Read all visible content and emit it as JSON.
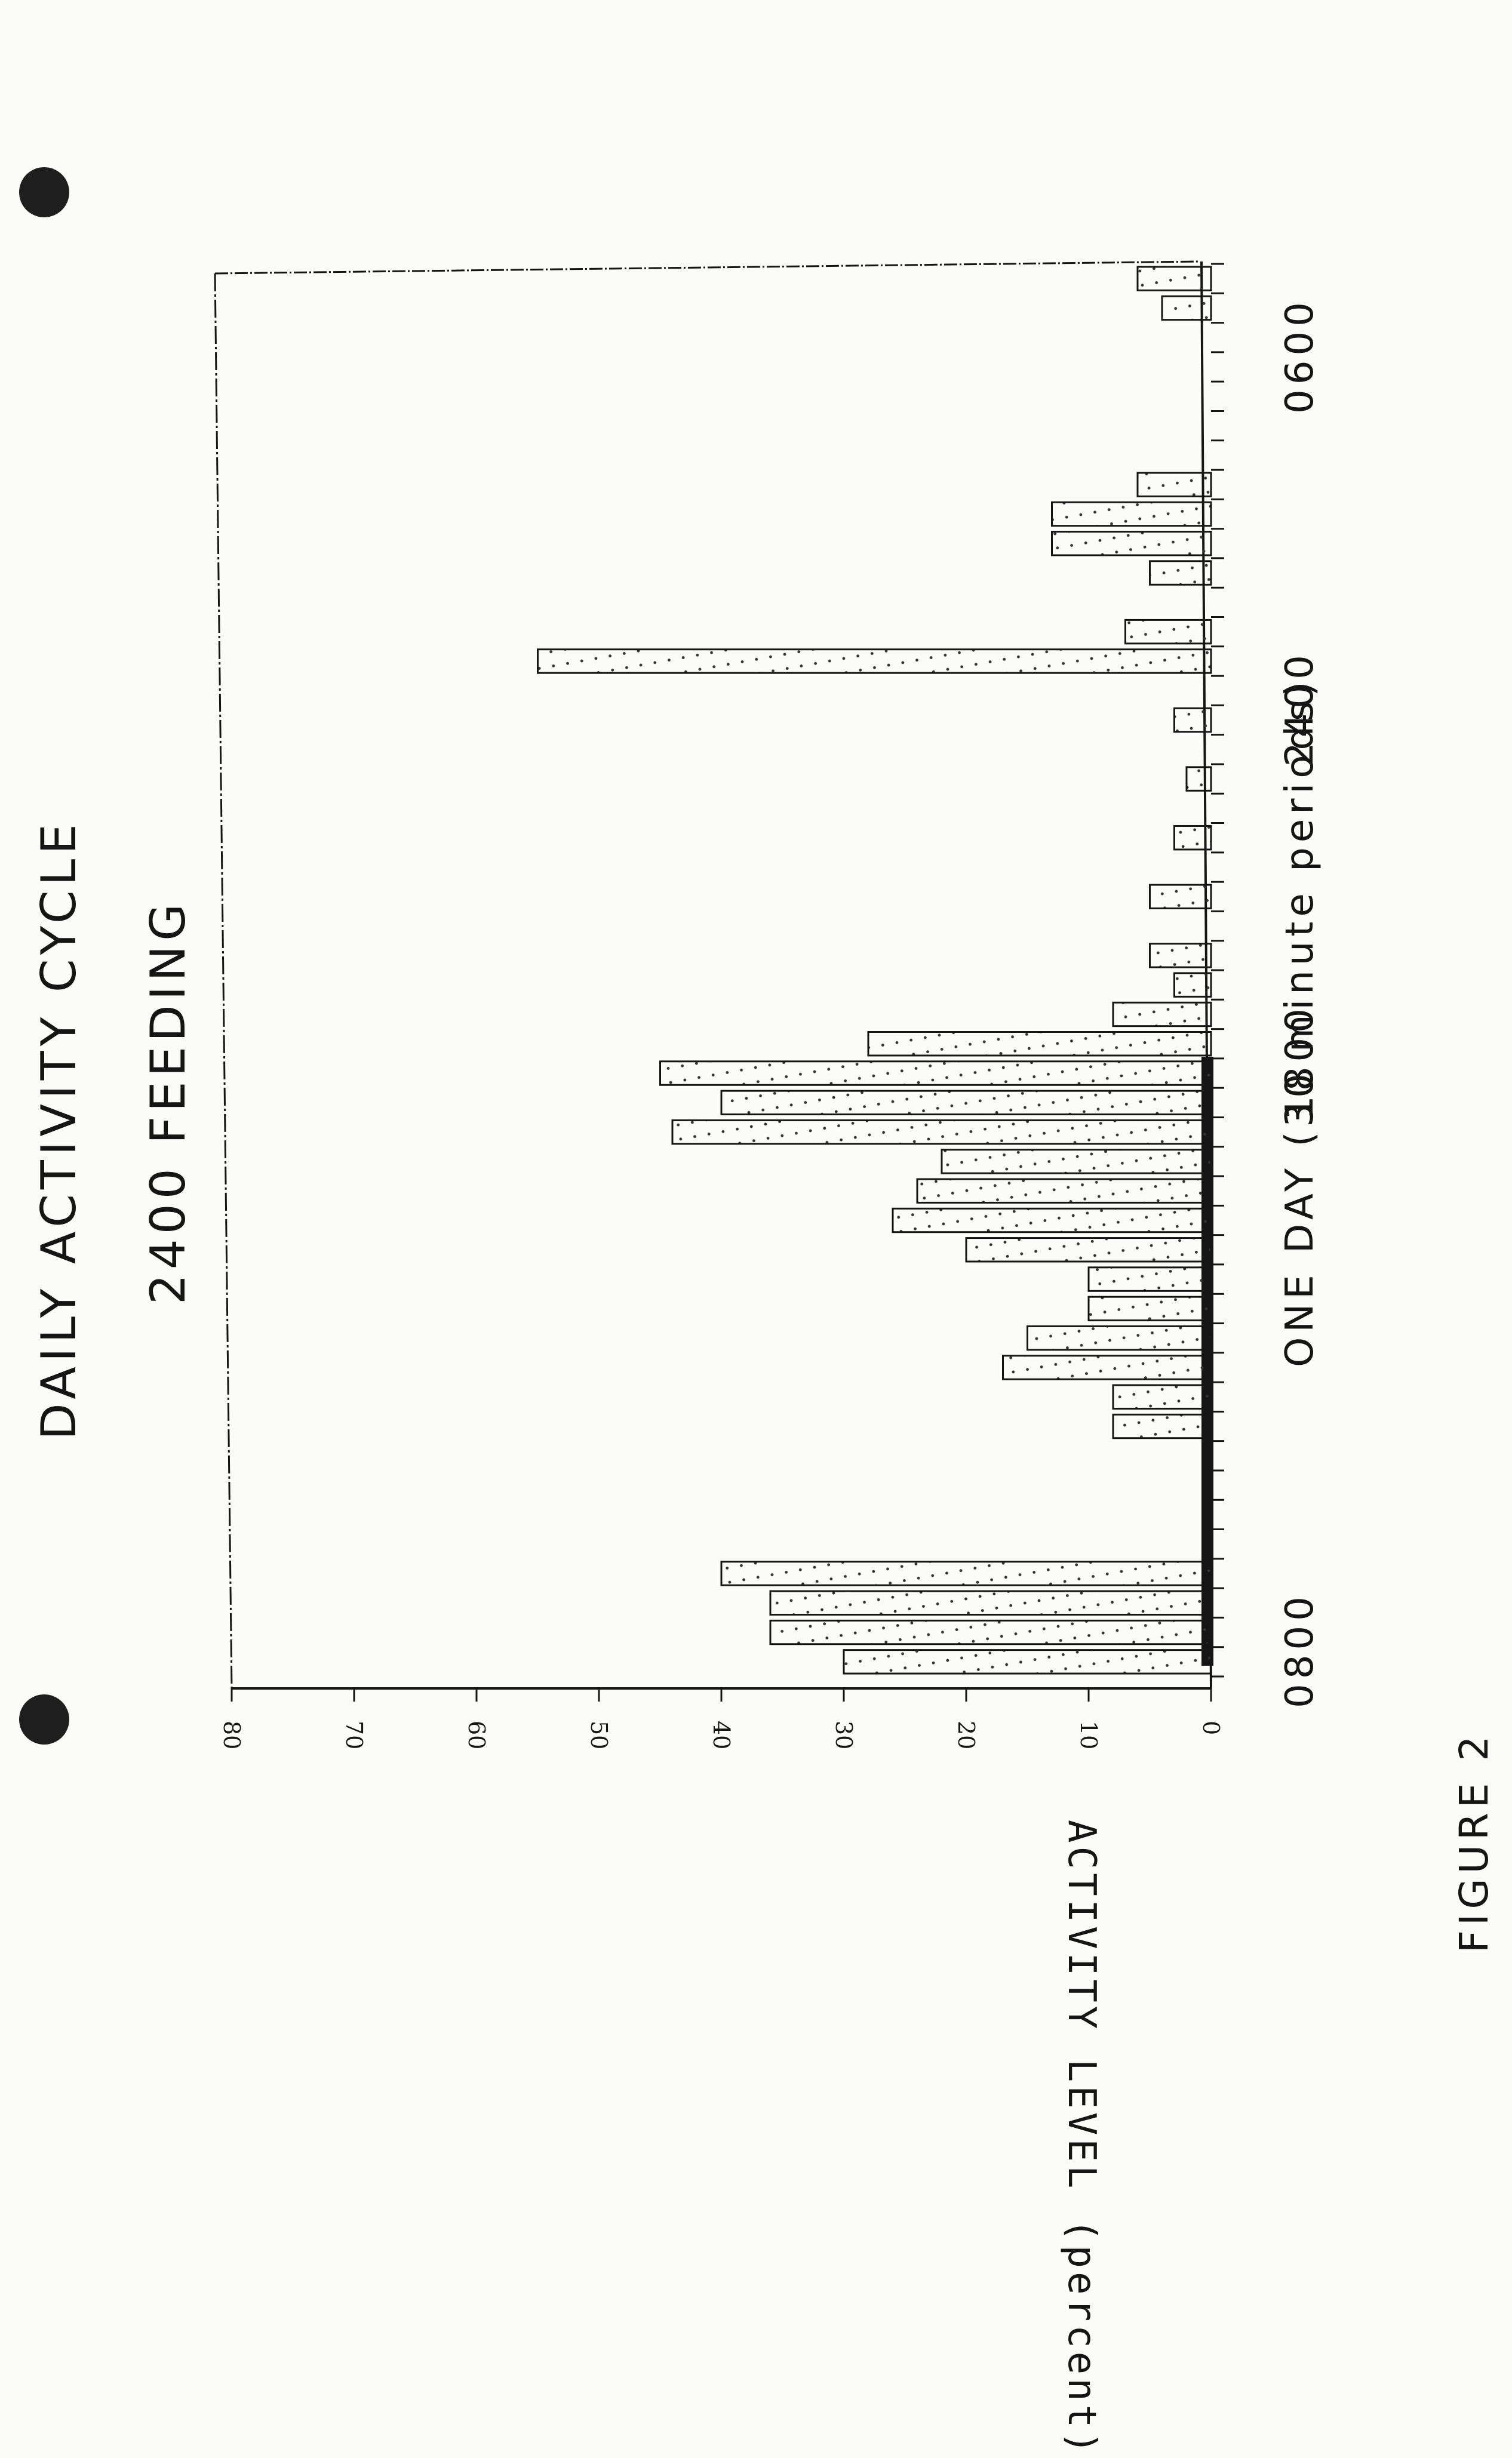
{
  "title": "DAILY ACTIVITY  CYCLE",
  "subtitle": "2400  FEEDING",
  "figure_label": "FIGURE 2",
  "colors": {
    "ink": "#151515",
    "paper": "#fbfbfa",
    "hole": "#1e1e1e"
  },
  "chart_data": {
    "type": "bar",
    "title": "DAILY ACTIVITY  CYCLE",
    "subtitle": "2400  FEEDING",
    "orientation": "rotated-90",
    "xlabel": "ONE DAY  (30 minute periods)",
    "ylabel": "ACTIVITY LEVEL  (percent)",
    "ylim": [
      0,
      80
    ],
    "yticks": [
      "0",
      "10",
      "20",
      "30",
      "40",
      "50",
      "60",
      "70",
      "80"
    ],
    "xtick_labels": [
      "0800",
      "1800",
      "2400",
      "0600"
    ],
    "periods_per_day": 48,
    "values": [
      30,
      36,
      36,
      40,
      0,
      0,
      0,
      0,
      8,
      8,
      17,
      15,
      10,
      10,
      20,
      26,
      24,
      22,
      44,
      40,
      45,
      28,
      8,
      3,
      5,
      0,
      5,
      0,
      3,
      0,
      2,
      0,
      3,
      0,
      55,
      7,
      0,
      5,
      13,
      13,
      6,
      0,
      0,
      0,
      0,
      0,
      4,
      6
    ],
    "grid": false,
    "fill_pattern": "diagonal-dots"
  }
}
